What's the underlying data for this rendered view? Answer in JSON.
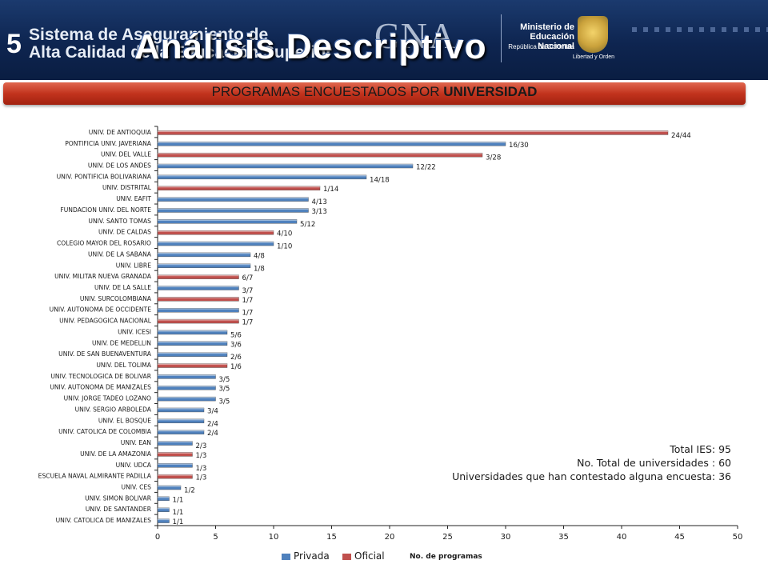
{
  "header": {
    "slide_number": "5",
    "system_line1": "Sistema de Aseguramiento de",
    "system_line2": "Alta Calidad de la Educación Superior",
    "logo_text": "CNA",
    "title": "Análisis Descriptivo",
    "ministry_line1": "Ministerio de",
    "ministry_line2": "Educación Nacional",
    "ministry_line3": "República de Colombia",
    "seal_caption": "Libertad y Orden"
  },
  "banner": {
    "text_regular": "PROGRAMAS ENCUESTADOS POR ",
    "text_bold": "UNIVERSIDAD"
  },
  "colors": {
    "privada": "#4f81bd",
    "oficial": "#c0504d"
  },
  "totals": {
    "line1": "Total IES: 95",
    "line2": "No. Total de universidades : 60",
    "line3": "Universidades que han contestado alguna encuesta: 36"
  },
  "chart_data": {
    "type": "bar",
    "orientation": "horizontal",
    "xlabel": "No. de programas",
    "xlim": [
      0,
      50
    ],
    "xticks": [
      0,
      5,
      10,
      15,
      20,
      25,
      30,
      35,
      40,
      45,
      50
    ],
    "legend": [
      {
        "name": "Privada",
        "color": "#4f81bd"
      },
      {
        "name": "Oficial",
        "color": "#c0504d"
      }
    ],
    "legend_position": "bottom",
    "categories": [
      "UNIV. DE ANTIOQUIA",
      "PONTIFICIA UNIV. JAVERIANA",
      "UNIV. DEL VALLE",
      "UNIV. DE LOS ANDES",
      "UNIV. PONTIFICIA BOLIVARIANA",
      "UNIV. DISTRITAL",
      "UNIV. EAFIT",
      "FUNDACION UNIV. DEL NORTE",
      "UNIV. SANTO TOMAS",
      "UNIV. DE CALDAS",
      "COLEGIO MAYOR DEL ROSARIO",
      "UNIV. DE LA SABANA",
      "UNIV. LIBRE",
      "UNIV. MILITAR NUEVA GRANADA",
      "UNIV. DE LA SALLE",
      "UNIV. SURCOLOMBIANA",
      "UNIV. AUTONOMA DE OCCIDENTE",
      "UNIV. PEDAGOGICA NACIONAL",
      "UNIV. ICESI",
      "UNIV. DE MEDELLIN",
      "UNIV. DE SAN BUENAVENTURA",
      "UNIV. DEL TOLIMA",
      "UNIV. TECNOLOGICA DE BOLIVAR",
      "UNIV. AUTONOMA DE MANIZALES",
      "UNIV. JORGE TADEO LOZANO",
      "UNIV. SERGIO ARBOLEDA",
      "UNIV. EL BOSQUE",
      "UNIV. CATOLICA DE COLOMBIA",
      "UNIV. EAN",
      "UNIV. DE LA AMAZONIA",
      "UNIV. UDCA",
      "ESCUELA NAVAL ALMIRANTE PADILLA",
      "UNIV. CES",
      "UNIV. SIMON BOLIVAR",
      "UNIV. DE SANTANDER",
      "UNIV. CATOLICA DE MANIZALES"
    ],
    "values": [
      44,
      30,
      28,
      22,
      18,
      14,
      13,
      13,
      12,
      10,
      10,
      8,
      8,
      7,
      7,
      7,
      7,
      7,
      6,
      6,
      6,
      6,
      5,
      5,
      5,
      4,
      4,
      4,
      3,
      3,
      3,
      3,
      2,
      1,
      1,
      1
    ],
    "types": [
      "Oficial",
      "Privada",
      "Oficial",
      "Privada",
      "Privada",
      "Oficial",
      "Privada",
      "Privada",
      "Privada",
      "Oficial",
      "Privada",
      "Privada",
      "Privada",
      "Oficial",
      "Privada",
      "Oficial",
      "Privada",
      "Oficial",
      "Privada",
      "Privada",
      "Privada",
      "Oficial",
      "Privada",
      "Privada",
      "Privada",
      "Privada",
      "Privada",
      "Privada",
      "Privada",
      "Oficial",
      "Privada",
      "Oficial",
      "Privada",
      "Privada",
      "Privada",
      "Privada"
    ],
    "data_labels": [
      "24/44",
      "16/30",
      "3/28",
      "12/22",
      "14/18",
      "1/14",
      "4/13",
      "3/13",
      "5/12",
      "4/10",
      "1/10",
      "4/8",
      "1/8",
      "6/7",
      "3/7",
      "1/7",
      "1/7",
      "1/7",
      "5/6",
      "3/6",
      "2/6",
      "1/6",
      "3/5",
      "3/5",
      "3/5",
      "3/4",
      "2/4",
      "2/4",
      "2/3",
      "1/3",
      "1/3",
      "1/3",
      "1/2",
      "1/1",
      "1/1",
      "1/1"
    ]
  }
}
